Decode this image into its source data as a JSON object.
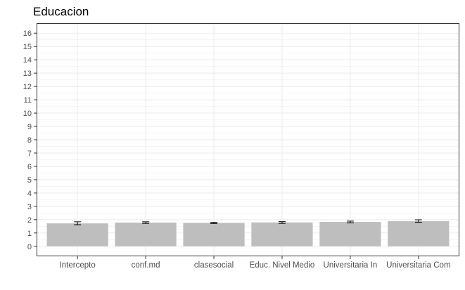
{
  "chart_data": {
    "type": "bar",
    "title": "Educacion",
    "xlabel": "",
    "ylabel": "",
    "categories": [
      "Intercepto",
      "conf.md",
      "clasesocial",
      "Educ. Nivel Medio",
      "Universitaria In",
      "Universitaria Com"
    ],
    "values": [
      1.72,
      1.78,
      1.76,
      1.79,
      1.83,
      1.89
    ],
    "error_low": [
      1.62,
      1.72,
      1.71,
      1.72,
      1.76,
      1.8
    ],
    "error_high": [
      1.84,
      1.84,
      1.8,
      1.85,
      1.89,
      1.99
    ],
    "ylim": [
      -0.75,
      16.75
    ],
    "yticks": [
      0,
      1,
      2,
      3,
      4,
      5,
      6,
      7,
      8,
      9,
      10,
      11,
      12,
      13,
      14,
      15,
      16
    ],
    "grid": true,
    "legend": "none",
    "colors": {
      "bar": "#bebebe",
      "grid": "#ebebeb",
      "panel_border": "#333333",
      "error_bar": "#000000",
      "tick_text": "#4d4d4d"
    }
  }
}
